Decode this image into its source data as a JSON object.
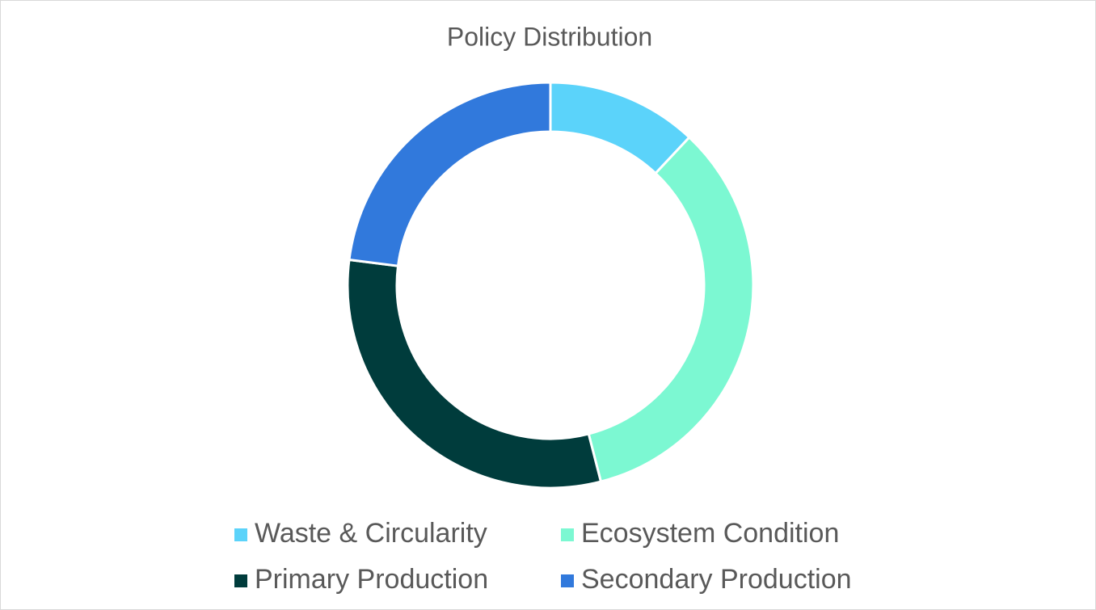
{
  "chart_data": {
    "type": "donut",
    "title": "Policy Distribution",
    "categories": [
      "Waste & Circularity",
      "Ecosystem Condition",
      "Primary Production",
      "Secondary Production"
    ],
    "values": [
      12,
      34,
      31,
      23
    ],
    "colors": [
      "#5bd3fa",
      "#7cf8d2",
      "#003c3c",
      "#3179dc"
    ],
    "legend": "bottom"
  }
}
